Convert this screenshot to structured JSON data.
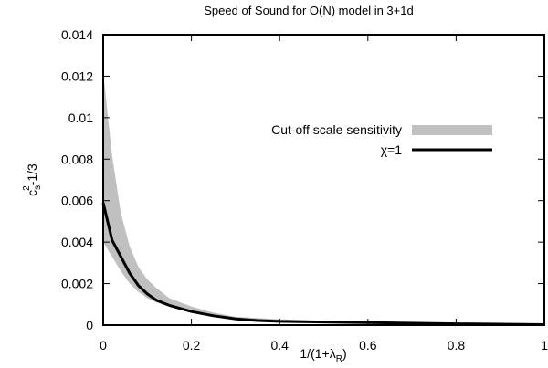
{
  "chart_data": {
    "type": "line",
    "title": "Speed of Sound for O(N) model in 3+1d",
    "xlabel": {
      "main": "1/(1+λ",
      "sub": "R",
      "close": ")"
    },
    "ylabel": {
      "base": "c",
      "sub": "s",
      "sup": "2",
      "rest": "-1/3"
    },
    "xlim": [
      0,
      1
    ],
    "ylim": [
      0,
      0.014
    ],
    "x_ticks": [
      {
        "value": 0,
        "label": "0"
      },
      {
        "value": 0.2,
        "label": "0.2"
      },
      {
        "value": 0.4,
        "label": "0.4"
      },
      {
        "value": 0.6,
        "label": "0.6"
      },
      {
        "value": 0.8,
        "label": "0.8"
      },
      {
        "value": 1,
        "label": "1"
      }
    ],
    "y_ticks": [
      {
        "value": 0,
        "label": "0"
      },
      {
        "value": 0.002,
        "label": "0.002"
      },
      {
        "value": 0.004,
        "label": "0.004"
      },
      {
        "value": 0.006,
        "label": "0.006"
      },
      {
        "value": 0.008,
        "label": "0.008"
      },
      {
        "value": 0.01,
        "label": "0.01"
      },
      {
        "value": 0.012,
        "label": "0.012"
      },
      {
        "value": 0.014,
        "label": "0.014"
      }
    ],
    "grid": false,
    "legend_position": "top-right",
    "series": [
      {
        "name": "Cut-off scale sensitivity",
        "kind": "band",
        "color": "#c0c0c0",
        "x": [
          0,
          0.02,
          0.04,
          0.06,
          0.08,
          0.1,
          0.12,
          0.15,
          0.2,
          0.25,
          0.3,
          0.4,
          0.5,
          0.6,
          0.8,
          1.0
        ],
        "lower": [
          0.004,
          0.0033,
          0.0026,
          0.002,
          0.0016,
          0.0013,
          0.0011,
          0.0009,
          0.0006,
          0.00045,
          0.0003,
          0.0002,
          0.00015,
          0.0001,
          5e-05,
          2e-05
        ],
        "upper": [
          0.0122,
          0.0082,
          0.0054,
          0.0038,
          0.0028,
          0.0022,
          0.0018,
          0.0013,
          0.0009,
          0.0006,
          0.0004,
          0.00028,
          0.0002,
          0.00015,
          8e-05,
          3e-05
        ]
      },
      {
        "name": "χ=1",
        "kind": "line",
        "color": "#000000",
        "x": [
          0,
          0.02,
          0.04,
          0.06,
          0.08,
          0.1,
          0.12,
          0.15,
          0.2,
          0.25,
          0.3,
          0.35,
          0.4,
          0.5,
          0.6,
          0.8,
          1.0
        ],
        "y": [
          0.0059,
          0.0041,
          0.0033,
          0.0025,
          0.0019,
          0.0015,
          0.0012,
          0.00095,
          0.00065,
          0.00045,
          0.0003,
          0.00022,
          0.00018,
          0.00015,
          0.00012,
          6e-05,
          2e-05
        ]
      }
    ]
  }
}
